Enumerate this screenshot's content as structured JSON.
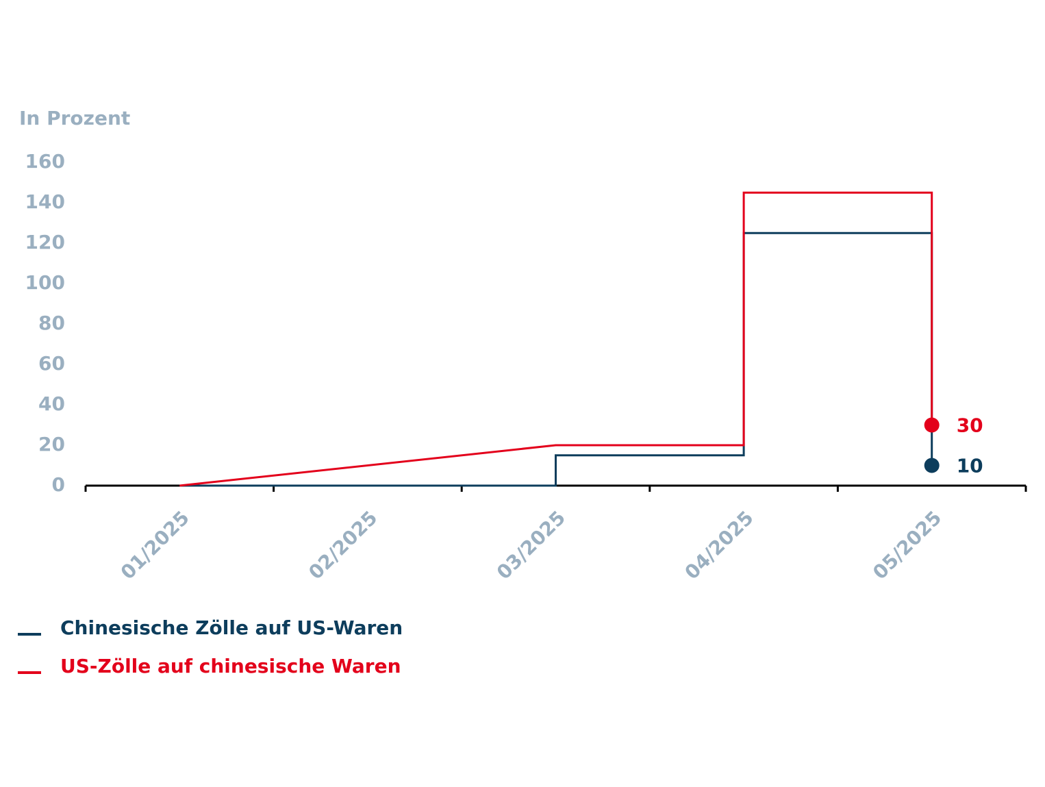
{
  "chart_data": {
    "type": "line",
    "y_label": "In Prozent",
    "xlim": [
      0.5,
      5.5
    ],
    "xticks": [
      {
        "value": 1,
        "label": "01/2025"
      },
      {
        "value": 2,
        "label": "02/2025"
      },
      {
        "value": 3,
        "label": "03/2025"
      },
      {
        "value": 4,
        "label": "04/2025"
      },
      {
        "value": 5,
        "label": "05/2025"
      }
    ],
    "ylim": [
      0,
      160
    ],
    "yticks": [
      0,
      20,
      40,
      60,
      80,
      100,
      120,
      140,
      160
    ],
    "series": [
      {
        "name": "Chinesische Zölle auf US-Waren",
        "color": "#0d3d5c",
        "x": [
          1,
          3,
          3,
          4,
          4,
          5,
          5
        ],
        "values": [
          0,
          0,
          15,
          15,
          125,
          125,
          10
        ]
      },
      {
        "name": "US-Zölle auf chinesische Waren",
        "color": "#e3001b",
        "x": [
          1,
          3,
          4,
          4,
          5,
          5
        ],
        "values": [
          0,
          20,
          20,
          145,
          145,
          30
        ]
      }
    ]
  }
}
